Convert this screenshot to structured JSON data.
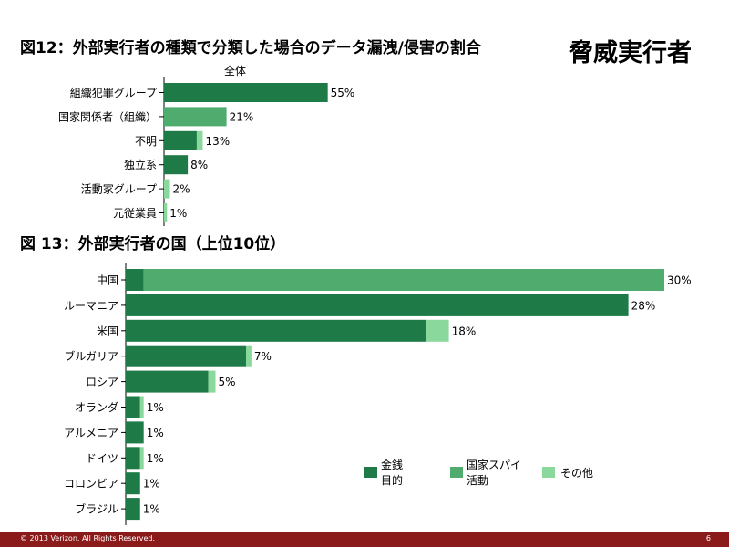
{
  "title1": "図12：外部実行者の種類で分類した場合のデータ漏洩/侵害の割合",
  "badge": "脅威実行者",
  "title2": "図 13：外部実行者の国（上位10位）",
  "footer": {
    "copyright": "© 2013 Verizon. All Rights Reserved.",
    "page": "6"
  },
  "colors": {
    "financial": "#1e7a46",
    "espionage": "#4fac6e",
    "other": "#8bd89c",
    "footer": "#8b1a1a"
  },
  "chart_data": [
    {
      "type": "bar",
      "orientation": "horizontal",
      "title": "図12：外部実行者の種類で分類した場合のデータ漏洩/侵害の割合",
      "series_label": "全体",
      "categories": [
        "組織犯罪グループ",
        "国家関係者（組織）",
        "不明",
        "独立系",
        "活動家グループ",
        "元従業員"
      ],
      "series": [
        {
          "name": "金銭目的",
          "color": "#1e7a46",
          "values": [
            55,
            0,
            0,
            8,
            0,
            0
          ]
        },
        {
          "name": "国家スパイ活動",
          "color": "#4fac6e",
          "values": [
            0,
            21,
            0,
            0,
            0,
            0
          ]
        },
        {
          "name": "その他",
          "color": "#8bd89c",
          "values": [
            0,
            0,
            0,
            0,
            2,
            1
          ]
        },
        {
          "name": "",
          "color": "#1e7a46",
          "values": [
            0,
            0,
            11,
            0,
            0,
            0
          ]
        },
        {
          "name": "",
          "color": "#8bd89c",
          "values": [
            0,
            0,
            2,
            0,
            0,
            0
          ]
        }
      ],
      "totals": [
        "55%",
        "21%",
        "13%",
        "8%",
        "2%",
        "1%"
      ],
      "xlim": [
        0,
        60
      ]
    },
    {
      "type": "bar",
      "orientation": "horizontal",
      "stacked": true,
      "title": "図 13：外部実行者の国（上位10位）",
      "categories": [
        "中国",
        "ルーマニア",
        "米国",
        "ブルガリア",
        "ロシア",
        "オランダ",
        "アルメニア",
        "ドイツ",
        "コロンビア",
        "ブラジル"
      ],
      "series": [
        {
          "name": "金銭目的",
          "color": "#1e7a46",
          "values": [
            1,
            28,
            16.7,
            6.7,
            4.6,
            0.8,
            1,
            0.8,
            0.8,
            0.8
          ]
        },
        {
          "name": "国家スパイ活動",
          "color": "#4fac6e",
          "values": [
            29,
            0,
            0,
            0,
            0,
            0,
            0,
            0,
            0,
            0
          ]
        },
        {
          "name": "その他",
          "color": "#8bd89c",
          "values": [
            0,
            0,
            1.3,
            0.3,
            0.4,
            0.2,
            0,
            0.2,
            0,
            0
          ]
        }
      ],
      "totals": [
        "30%",
        "28%",
        "18%",
        "7%",
        "5%",
        "1%",
        "1%",
        "1%",
        "1%",
        "1%"
      ],
      "xlim": [
        0,
        30
      ],
      "legend": {
        "placement": "bottom-right",
        "items": [
          {
            "line1": "金銭",
            "line2": "目的"
          },
          {
            "line1": "国家スパイ",
            "line2": "活動"
          },
          {
            "line1": "その他",
            "line2": ""
          }
        ]
      }
    }
  ]
}
